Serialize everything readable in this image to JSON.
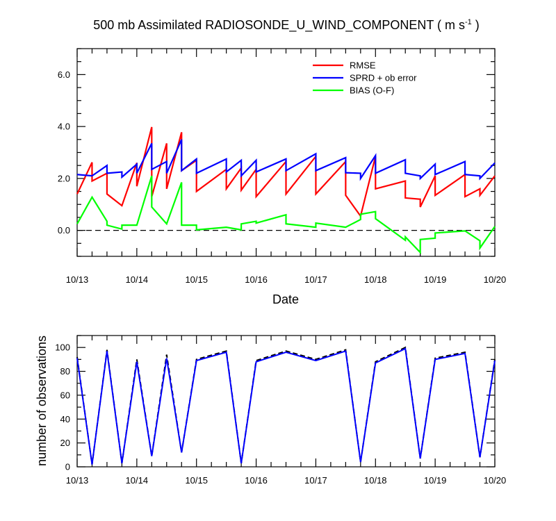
{
  "chart_data": [
    {
      "type": "line",
      "title": "500 mb Assimilated RADIOSONDE_U_WIND_COMPONENT ( m s",
      "title_sup": "-1",
      "title_end": " )",
      "xlabel": "Date",
      "ylabel": "",
      "xlim": [
        0,
        7
      ],
      "ylim": [
        -1,
        7
      ],
      "x_tick_labels": [
        "10/13",
        "10/14",
        "10/15",
        "10/16",
        "10/17",
        "10/18",
        "10/19",
        "10/20"
      ],
      "y_ticks": [
        0,
        2,
        4,
        6
      ],
      "y_tick_labels": [
        "0.0",
        "2.0",
        "4.0",
        "6.0"
      ],
      "zero_line": "dashed",
      "legend": [
        "RMSE",
        "SPRD + ob error",
        "BIAS (O-F)"
      ],
      "legend_position": "top-right",
      "series": [
        {
          "name": "RMSE",
          "color": "#ff0000",
          "points": [
            [
              0,
              1.4
            ],
            [
              0.25,
              2.62
            ],
            [
              0.25,
              1.9
            ],
            [
              0.5,
              2.2
            ],
            [
              0.5,
              1.4
            ],
            [
              0.75,
              0.95
            ],
            [
              1.0,
              2.6
            ],
            [
              1.0,
              1.7
            ],
            [
              1.25,
              3.98
            ],
            [
              1.25,
              1.3
            ],
            [
              1.5,
              3.35
            ],
            [
              1.5,
              1.6
            ],
            [
              1.75,
              3.78
            ],
            [
              1.75,
              2.3
            ],
            [
              2.0,
              2.7
            ],
            [
              2.0,
              1.5
            ],
            [
              2.5,
              2.35
            ],
            [
              2.5,
              1.6
            ],
            [
              2.75,
              2.4
            ],
            [
              2.75,
              1.55
            ],
            [
              3.0,
              2.35
            ],
            [
              3.0,
              1.3
            ],
            [
              3.5,
              2.65
            ],
            [
              3.5,
              1.4
            ],
            [
              4.0,
              2.85
            ],
            [
              4.0,
              1.4
            ],
            [
              4.5,
              2.65
            ],
            [
              4.5,
              1.35
            ],
            [
              4.75,
              0.55
            ],
            [
              5.0,
              2.85
            ],
            [
              5.0,
              1.6
            ],
            [
              5.5,
              1.9
            ],
            [
              5.5,
              1.25
            ],
            [
              5.75,
              1.2
            ],
            [
              5.75,
              0.9
            ],
            [
              6.0,
              2.1
            ],
            [
              6.0,
              1.35
            ],
            [
              6.5,
              2.15
            ],
            [
              6.5,
              1.3
            ],
            [
              6.75,
              1.6
            ],
            [
              6.75,
              1.35
            ],
            [
              7.0,
              2.1
            ]
          ]
        },
        {
          "name": "SPRD + ob error",
          "color": "#0000ff",
          "points": [
            [
              0,
              2.15
            ],
            [
              0.25,
              2.1
            ],
            [
              0.5,
              2.5
            ],
            [
              0.5,
              2.2
            ],
            [
              0.75,
              2.25
            ],
            [
              0.75,
              2.05
            ],
            [
              1.0,
              2.55
            ],
            [
              1.0,
              2.2
            ],
            [
              1.25,
              3.35
            ],
            [
              1.25,
              2.35
            ],
            [
              1.5,
              2.65
            ],
            [
              1.5,
              2.2
            ],
            [
              1.75,
              3.5
            ],
            [
              1.75,
              2.3
            ],
            [
              2.0,
              2.75
            ],
            [
              2.0,
              2.2
            ],
            [
              2.5,
              2.75
            ],
            [
              2.5,
              2.25
            ],
            [
              2.75,
              2.7
            ],
            [
              2.75,
              2.1
            ],
            [
              3.0,
              2.7
            ],
            [
              3.0,
              2.25
            ],
            [
              3.5,
              2.75
            ],
            [
              3.5,
              2.3
            ],
            [
              4.0,
              2.95
            ],
            [
              4.0,
              2.3
            ],
            [
              4.5,
              2.8
            ],
            [
              4.5,
              2.22
            ],
            [
              4.75,
              2.2
            ],
            [
              4.75,
              2.0
            ],
            [
              5.0,
              2.88
            ],
            [
              5.0,
              2.2
            ],
            [
              5.5,
              2.72
            ],
            [
              5.5,
              2.2
            ],
            [
              5.75,
              2.1
            ],
            [
              5.75,
              2.0
            ],
            [
              6.0,
              2.55
            ],
            [
              6.0,
              2.15
            ],
            [
              6.5,
              2.65
            ],
            [
              6.5,
              2.15
            ],
            [
              6.75,
              2.1
            ],
            [
              6.75,
              2.0
            ],
            [
              7.0,
              2.6
            ]
          ]
        },
        {
          "name": "BIAS (O-F)",
          "color": "#00ff00",
          "points": [
            [
              0,
              0.25
            ],
            [
              0.25,
              1.28
            ],
            [
              0.5,
              0.35
            ],
            [
              0.5,
              0.2
            ],
            [
              0.75,
              0.05
            ],
            [
              0.75,
              0.2
            ],
            [
              1.0,
              0.2
            ],
            [
              1.25,
              2.1
            ],
            [
              1.25,
              0.9
            ],
            [
              1.5,
              0.25
            ],
            [
              1.75,
              1.85
            ],
            [
              1.75,
              0.2
            ],
            [
              2.0,
              0.2
            ],
            [
              2.0,
              0.02
            ],
            [
              2.5,
              0.12
            ],
            [
              2.75,
              0.02
            ],
            [
              2.75,
              0.25
            ],
            [
              3.0,
              0.35
            ],
            [
              3.0,
              0.28
            ],
            [
              3.5,
              0.6
            ],
            [
              3.5,
              0.25
            ],
            [
              4.0,
              0.12
            ],
            [
              4.0,
              0.28
            ],
            [
              4.5,
              0.12
            ],
            [
              4.75,
              0.42
            ],
            [
              4.75,
              0.62
            ],
            [
              5.0,
              0.72
            ],
            [
              5.0,
              0.45
            ],
            [
              5.5,
              -0.38
            ],
            [
              5.5,
              -0.25
            ],
            [
              5.75,
              -0.85
            ],
            [
              5.75,
              -0.35
            ],
            [
              6.0,
              -0.3
            ],
            [
              6.0,
              -0.1
            ],
            [
              6.5,
              -0.02
            ],
            [
              6.75,
              -0.4
            ],
            [
              6.75,
              -0.68
            ],
            [
              7.0,
              0.15
            ]
          ]
        }
      ]
    },
    {
      "type": "line",
      "title": "",
      "xlabel": "",
      "ylabel": "number of observations",
      "xlim": [
        0,
        7
      ],
      "ylim": [
        0,
        110
      ],
      "x_tick_labels": [
        "10/13",
        "10/14",
        "10/15",
        "10/16",
        "10/17",
        "10/18",
        "10/19",
        "10/20"
      ],
      "y_ticks": [
        0,
        20,
        40,
        60,
        80,
        100
      ],
      "y_tick_labels": [
        "0",
        "20",
        "40",
        "60",
        "80",
        "100"
      ],
      "series": [
        {
          "name": "observations (dashed)",
          "color": "#000000",
          "dashed": true,
          "points": [
            [
              0,
              92
            ],
            [
              0.25,
              2
            ],
            [
              0.5,
              98
            ],
            [
              0.75,
              3
            ],
            [
              1.0,
              90
            ],
            [
              1.25,
              9
            ],
            [
              1.5,
              94
            ],
            [
              1.75,
              12
            ],
            [
              2.0,
              90
            ],
            [
              2.5,
              97
            ],
            [
              2.75,
              3
            ],
            [
              3.0,
              89
            ],
            [
              3.5,
              97
            ],
            [
              4.0,
              90
            ],
            [
              4.5,
              98
            ],
            [
              4.75,
              4
            ],
            [
              5.0,
              88
            ],
            [
              5.5,
              100
            ],
            [
              5.75,
              7
            ],
            [
              6.0,
              91
            ],
            [
              6.5,
              96
            ],
            [
              6.75,
              8
            ],
            [
              7.0,
              90
            ]
          ]
        },
        {
          "name": "observations",
          "color": "#0000ff",
          "dashed": false,
          "points": [
            [
              0,
              91
            ],
            [
              0.25,
              2
            ],
            [
              0.5,
              97
            ],
            [
              0.75,
              3
            ],
            [
              1.0,
              88
            ],
            [
              1.25,
              9
            ],
            [
              1.5,
              91
            ],
            [
              1.75,
              12
            ],
            [
              2.0,
              89
            ],
            [
              2.5,
              96
            ],
            [
              2.75,
              3
            ],
            [
              3.0,
              88
            ],
            [
              3.5,
              96
            ],
            [
              4.0,
              89
            ],
            [
              4.5,
              97
            ],
            [
              4.75,
              4
            ],
            [
              5.0,
              87
            ],
            [
              5.5,
              99
            ],
            [
              5.75,
              7
            ],
            [
              6.0,
              90
            ],
            [
              6.5,
              95
            ],
            [
              6.75,
              8
            ],
            [
              7.0,
              89
            ]
          ]
        }
      ]
    }
  ]
}
